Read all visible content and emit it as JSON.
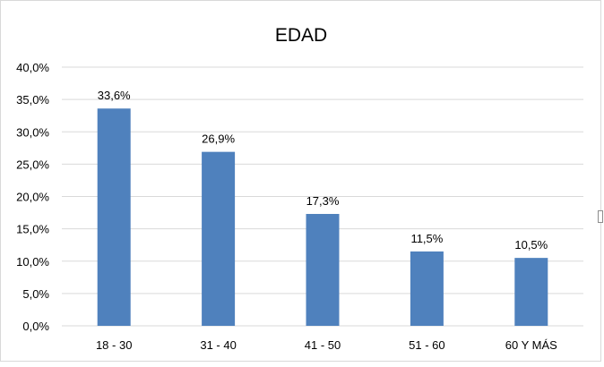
{
  "chart_data": {
    "type": "bar",
    "title": "EDAD",
    "categories": [
      "18 - 30",
      "31 - 40",
      "41 - 50",
      "51 - 60",
      "60 Y MÁS"
    ],
    "values": [
      33.6,
      26.9,
      17.3,
      11.5,
      10.5
    ],
    "data_labels": [
      "33,6%",
      "26,9%",
      "17,3%",
      "11,5%",
      "10,5%"
    ],
    "ylim": [
      0,
      40
    ],
    "yticks": [
      0,
      5,
      10,
      15,
      20,
      25,
      30,
      35,
      40
    ],
    "ytick_labels": [
      "0,0%",
      "5,0%",
      "10,0%",
      "15,0%",
      "20,0%",
      "25,0%",
      "30,0%",
      "35,0%",
      "40,0%"
    ],
    "xlabel": "",
    "ylabel": "",
    "grid": true,
    "legend": "none",
    "bar_color": "#4f81bd",
    "grid_color": "#d9d9d9"
  }
}
